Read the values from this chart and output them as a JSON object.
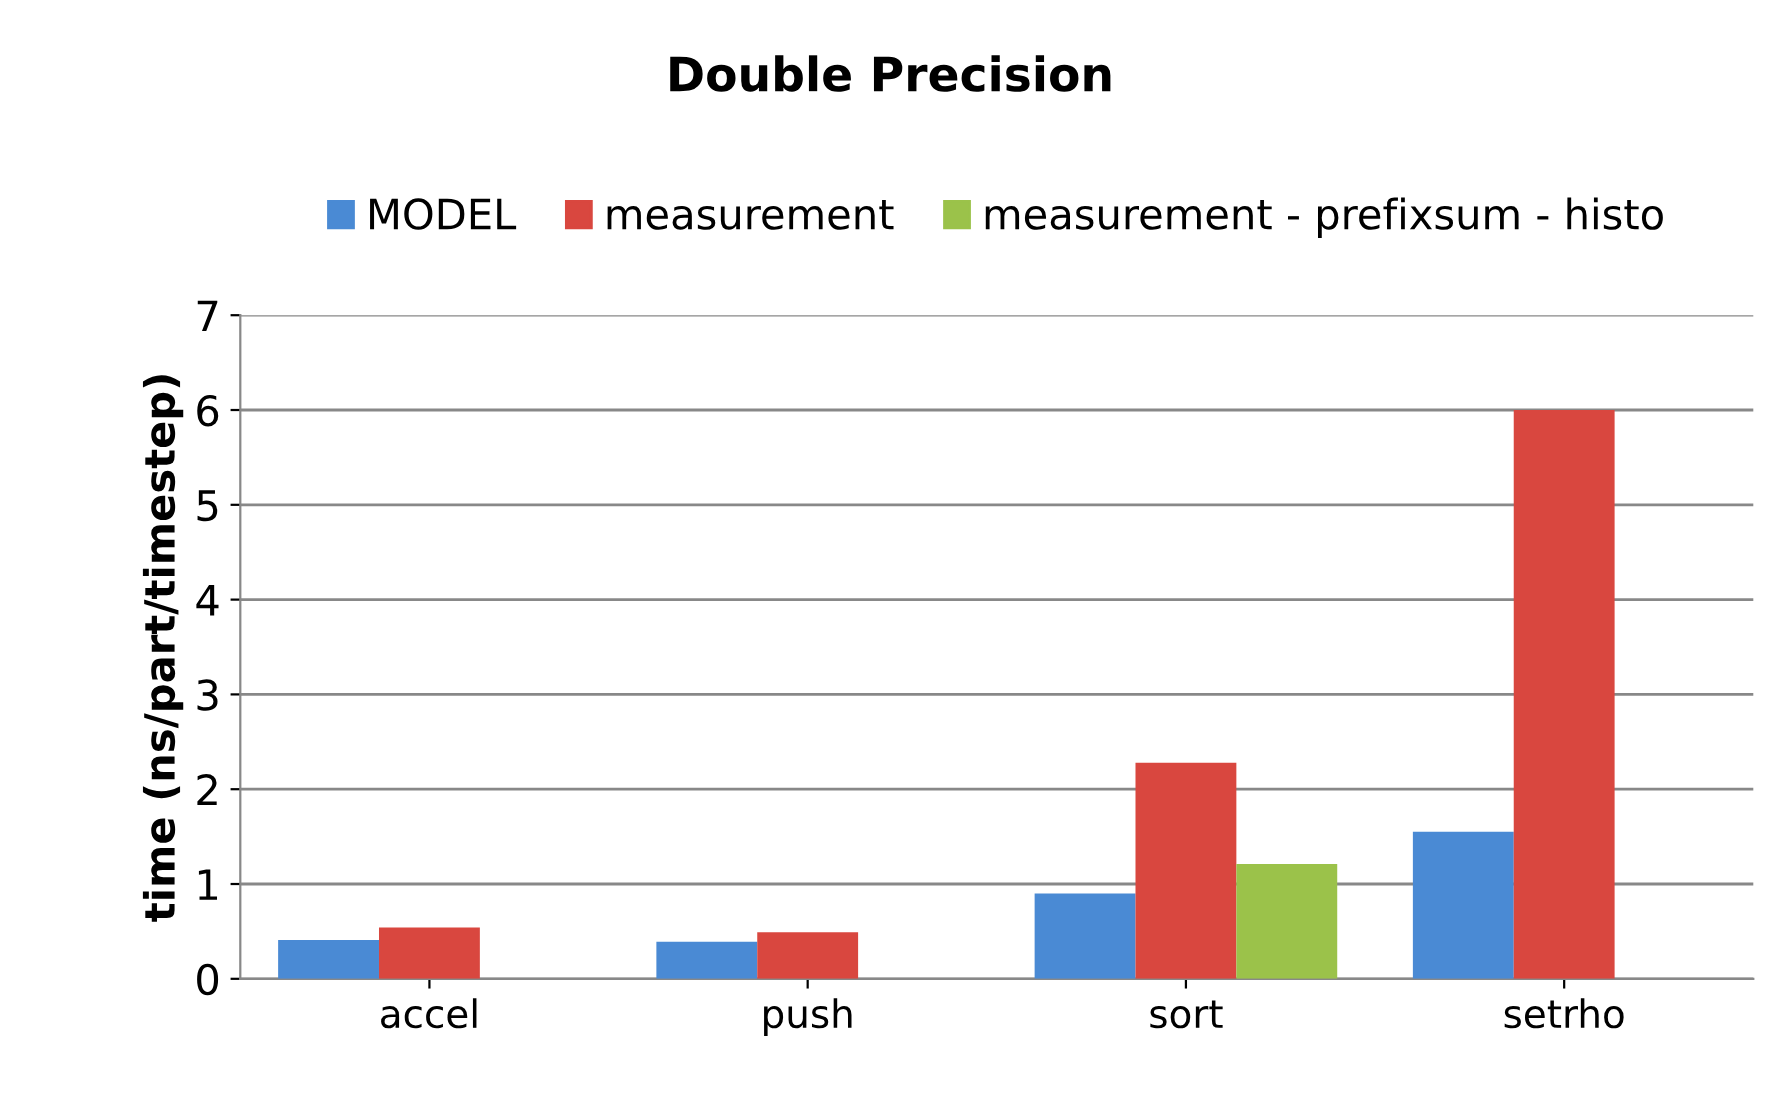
{
  "chart_data": {
    "type": "bar",
    "title": "Double Precision",
    "ylabel": "time (ns/part/timestep)",
    "categories": [
      "accel",
      "push",
      "sort",
      "setrho"
    ],
    "series": [
      {
        "name": "MODEL",
        "color": "#4a8ad4",
        "values": [
          0.41,
          0.39,
          0.9,
          1.55
        ]
      },
      {
        "name": "measurement",
        "color": "#d9473f",
        "values": [
          0.54,
          0.49,
          2.28,
          6.0
        ]
      },
      {
        "name": "measurement - prefixsum - histo",
        "color": "#9bc24a",
        "values": [
          null,
          null,
          1.21,
          null
        ]
      }
    ],
    "ylim": [
      0,
      7
    ],
    "yticks": [
      0,
      1,
      2,
      3,
      4,
      5,
      6,
      7
    ],
    "grid": "y",
    "legend": "top"
  }
}
